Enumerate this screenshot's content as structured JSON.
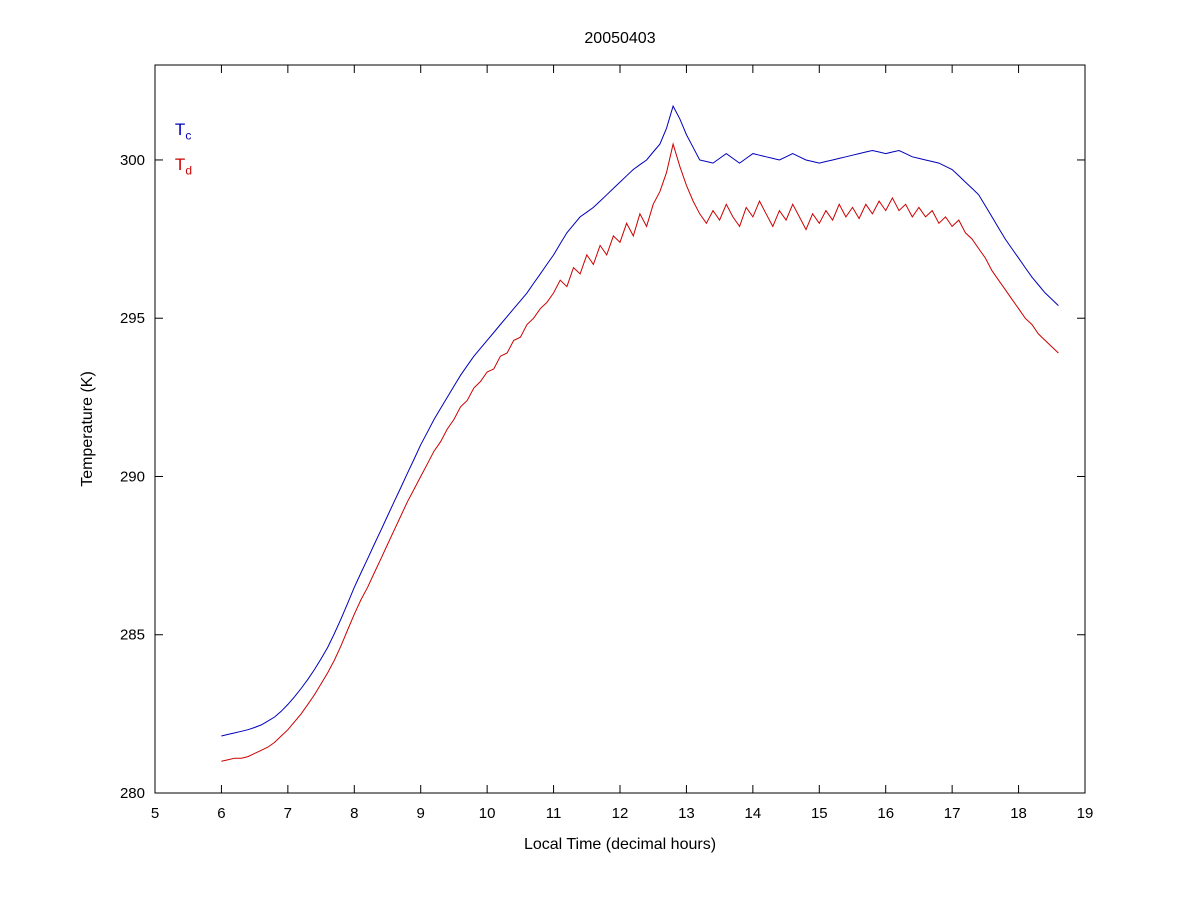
{
  "chart_data": {
    "type": "line",
    "title": "20050403",
    "xlabel": "Local Time (decimal hours)",
    "ylabel": "Temperature (K)",
    "xlim": [
      5,
      19
    ],
    "ylim": [
      280,
      303
    ],
    "xticks": [
      5,
      6,
      7,
      8,
      9,
      10,
      11,
      12,
      13,
      14,
      15,
      16,
      17,
      18,
      19
    ],
    "yticks": [
      280,
      285,
      290,
      295,
      300
    ],
    "grid": false,
    "legend_position": "upper-left-inside-text",
    "axis_color": "#000000",
    "background_color": "#ffffff",
    "x": [
      6,
      6.1,
      6.2,
      6.3,
      6.4,
      6.5,
      6.6,
      6.7,
      6.8,
      6.9,
      7,
      7.1,
      7.2,
      7.3,
      7.4,
      7.5,
      7.6,
      7.7,
      7.8,
      7.9,
      8,
      8.1,
      8.2,
      8.3,
      8.4,
      8.5,
      8.6,
      8.7,
      8.8,
      8.9,
      9,
      9.1,
      9.2,
      9.3,
      9.4,
      9.5,
      9.6,
      9.7,
      9.8,
      9.9,
      10,
      10.1,
      10.2,
      10.3,
      10.4,
      10.5,
      10.6,
      10.7,
      10.8,
      10.9,
      11,
      11.1,
      11.2,
      11.3,
      11.4,
      11.5,
      11.6,
      11.7,
      11.8,
      11.9,
      12,
      12.1,
      12.2,
      12.3,
      12.4,
      12.5,
      12.6,
      12.7,
      12.8,
      12.9,
      13,
      13.1,
      13.2,
      13.3,
      13.4,
      13.5,
      13.6,
      13.7,
      13.8,
      13.9,
      14,
      14.1,
      14.2,
      14.3,
      14.4,
      14.5,
      14.6,
      14.7,
      14.8,
      14.9,
      15,
      15.1,
      15.2,
      15.3,
      15.4,
      15.5,
      15.6,
      15.7,
      15.8,
      15.9,
      16,
      16.1,
      16.2,
      16.3,
      16.4,
      16.5,
      16.6,
      16.7,
      16.8,
      16.9,
      17,
      17.1,
      17.2,
      17.3,
      17.4,
      17.5,
      17.6,
      17.7,
      17.8,
      17.9,
      18,
      18.1,
      18.2,
      18.3,
      18.4,
      18.5,
      18.6
    ],
    "series": [
      {
        "name": "T_c",
        "label_main": "T",
        "label_sub": "c",
        "color": "#0000bb",
        "values": [
          281.8,
          281.85,
          281.9,
          281.95,
          282.0,
          282.07,
          282.15,
          282.27,
          282.4,
          282.58,
          282.8,
          283.04,
          283.3,
          283.59,
          283.9,
          284.24,
          284.6,
          285.04,
          285.5,
          285.99,
          286.5,
          286.95,
          287.4,
          287.85,
          288.3,
          288.75,
          289.2,
          289.65,
          290.1,
          290.55,
          291.0,
          291.4,
          291.8,
          292.15,
          292.5,
          292.85,
          293.2,
          293.5,
          293.8,
          294.05,
          294.3,
          294.55,
          294.8,
          295.05,
          295.3,
          295.55,
          295.8,
          296.1,
          296.4,
          296.7,
          297.0,
          297.35,
          297.7,
          297.95,
          298.2,
          298.35,
          298.5,
          298.7,
          298.9,
          299.1,
          299.3,
          299.5,
          299.7,
          299.85,
          300.0,
          300.25,
          300.5,
          301.0,
          301.7,
          301.3,
          300.8,
          300.4,
          300.0,
          299.95,
          299.9,
          300.05,
          300.2,
          300.05,
          299.9,
          300.05,
          300.2,
          300.15,
          300.1,
          300.05,
          300.0,
          300.1,
          300.2,
          300.1,
          300.0,
          299.95,
          299.9,
          299.95,
          300.0,
          300.05,
          300.1,
          300.15,
          300.2,
          300.25,
          300.3,
          300.25,
          300.2,
          300.25,
          300.3,
          300.2,
          300.1,
          300.05,
          300.0,
          299.95,
          299.9,
          299.8,
          299.7,
          299.5,
          299.3,
          299.1,
          298.9,
          298.55,
          298.2,
          297.85,
          297.5,
          297.2,
          296.9,
          296.6,
          296.3,
          296.05,
          295.8,
          295.6,
          295.4
        ]
      },
      {
        "name": "T_d",
        "label_main": "T",
        "label_sub": "d",
        "color": "#cc0000",
        "values": [
          281.0,
          281.05,
          281.1,
          281.1,
          281.15,
          281.25,
          281.35,
          281.45,
          281.6,
          281.8,
          282.0,
          282.25,
          282.5,
          282.8,
          283.1,
          283.45,
          283.8,
          284.2,
          284.65,
          285.15,
          285.65,
          286.1,
          286.5,
          286.95,
          287.4,
          287.85,
          288.3,
          288.75,
          289.2,
          289.6,
          290.0,
          290.4,
          290.8,
          291.1,
          291.5,
          291.8,
          292.2,
          292.4,
          292.8,
          293.0,
          293.3,
          293.4,
          293.8,
          293.9,
          294.3,
          294.4,
          294.8,
          295.0,
          295.3,
          295.5,
          295.8,
          296.2,
          296.0,
          296.6,
          296.4,
          297.0,
          296.7,
          297.3,
          297.0,
          297.6,
          297.4,
          298.0,
          297.6,
          298.3,
          297.9,
          298.6,
          299.0,
          299.6,
          300.5,
          299.8,
          299.2,
          298.7,
          298.3,
          298.0,
          298.4,
          298.1,
          298.6,
          298.2,
          297.9,
          298.5,
          298.2,
          298.7,
          298.3,
          297.9,
          298.4,
          298.1,
          298.6,
          298.2,
          297.8,
          298.3,
          298.0,
          298.4,
          298.1,
          298.6,
          298.2,
          298.5,
          298.15,
          298.6,
          298.3,
          298.7,
          298.4,
          298.8,
          298.4,
          298.6,
          298.2,
          298.5,
          298.2,
          298.4,
          298.0,
          298.2,
          297.9,
          298.1,
          297.7,
          297.5,
          297.2,
          296.9,
          296.5,
          296.2,
          295.9,
          295.6,
          295.3,
          295.0,
          294.8,
          294.5,
          294.3,
          294.1,
          293.9
        ]
      }
    ],
    "annotations": [
      {
        "series_index": 0,
        "x": 5.3,
        "y": 300.9
      },
      {
        "series_index": 1,
        "x": 5.3,
        "y": 299.8
      }
    ]
  }
}
